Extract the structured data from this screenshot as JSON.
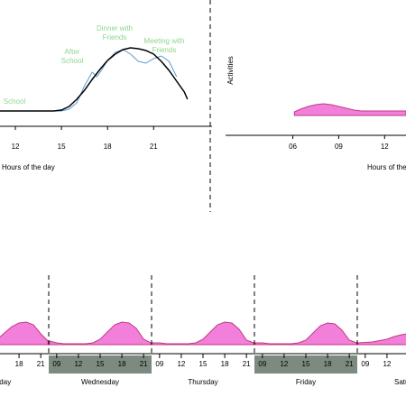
{
  "chart_data": [
    {
      "type": "line",
      "x_label": "Hours of the day",
      "xlim": [
        11,
        24.8
      ],
      "ylim": [
        0,
        1
      ],
      "xticks": [
        12,
        15,
        18,
        21
      ],
      "annotation_color": "#8fd68f",
      "annotations": [
        [
          "School"
        ],
        [
          "After",
          "School"
        ],
        [
          "Dinner with",
          "Friends"
        ],
        [
          "Meeting with",
          "Friends"
        ]
      ],
      "series": [
        {
          "color": "#000000",
          "x": [
            11,
            12,
            13,
            14,
            14.5,
            15,
            15.5,
            16,
            16.5,
            17,
            17.5,
            18,
            18.5,
            19,
            19.5,
            20,
            20.5,
            21,
            21.5,
            22,
            22.5,
            23,
            23.2
          ],
          "values": [
            0.17,
            0.17,
            0.17,
            0.17,
            0.17,
            0.18,
            0.22,
            0.3,
            0.4,
            0.52,
            0.63,
            0.73,
            0.8,
            0.85,
            0.87,
            0.86,
            0.84,
            0.8,
            0.72,
            0.62,
            0.5,
            0.38,
            0.3
          ]
        },
        {
          "color": "#5b9bd5",
          "x": [
            14,
            14.5,
            15,
            15.5,
            16,
            16.5,
            17,
            17.3,
            17.6,
            18,
            18.5,
            19,
            19.5,
            20,
            20.5,
            21,
            21.5,
            22,
            22.5
          ],
          "values": [
            0.17,
            0.17,
            0.17,
            0.19,
            0.26,
            0.45,
            0.6,
            0.55,
            0.62,
            0.73,
            0.82,
            0.85,
            0.8,
            0.72,
            0.7,
            0.75,
            0.78,
            0.72,
            0.55
          ]
        }
      ]
    },
    {
      "type": "area",
      "y_label": "Activities",
      "x_label": "Hours of the day",
      "xlim": [
        1.6,
        13.4
      ],
      "ylim": [
        0,
        1
      ],
      "xticks": [
        {
          "value": 6,
          "label": "06"
        },
        {
          "value": 9,
          "label": "09"
        },
        12
      ],
      "series": [
        {
          "color": "#f27fd9",
          "x": [
            6.1,
            6.5,
            7,
            7.5,
            8,
            8.5,
            9,
            9.5,
            10,
            10.5,
            11,
            12,
            13,
            13.4
          ],
          "values": [
            0.04,
            0.07,
            0.1,
            0.12,
            0.13,
            0.12,
            0.1,
            0.08,
            0.06,
            0.05,
            0.05,
            0.05,
            0.05,
            0.05
          ]
        }
      ]
    },
    {
      "type": "week",
      "xlim": [
        7.9,
        22.1
      ],
      "ylim": [
        0,
        1
      ],
      "color": "#f27fd9",
      "days": [
        {
          "name": "Tuesday",
          "highlight": false,
          "xticks": [
            18,
            21
          ],
          "x": [
            15,
            16,
            17,
            18,
            19,
            20,
            21,
            22
          ],
          "values": [
            0.06,
            0.13,
            0.2,
            0.24,
            0.25,
            0.22,
            0.12,
            0.04
          ]
        },
        {
          "name": "Wednesday",
          "highlight": true,
          "xticks": [
            {
              "value": 9,
              "label": "09"
            },
            12,
            15,
            18,
            21
          ],
          "x": [
            8,
            9,
            10,
            11,
            12,
            13,
            14,
            15,
            16,
            17,
            18,
            19,
            20,
            21,
            22
          ],
          "values": [
            0.04,
            0.02,
            0.01,
            0.01,
            0.01,
            0.01,
            0.02,
            0.06,
            0.14,
            0.22,
            0.25,
            0.24,
            0.18,
            0.06,
            0.02
          ]
        },
        {
          "name": "Thursday",
          "highlight": false,
          "xticks": [
            {
              "value": 9,
              "label": "09"
            },
            12,
            15,
            18,
            21
          ],
          "x": [
            8,
            9,
            10,
            11,
            12,
            13,
            14,
            15,
            16,
            17,
            18,
            19,
            20,
            21,
            22
          ],
          "values": [
            0.02,
            0.02,
            0.01,
            0.01,
            0.01,
            0.01,
            0.02,
            0.06,
            0.14,
            0.22,
            0.25,
            0.24,
            0.17,
            0.05,
            0.02
          ]
        },
        {
          "name": "Friday",
          "highlight": true,
          "xticks": [
            {
              "value": 9,
              "label": "09"
            },
            12,
            15,
            18,
            21
          ],
          "x": [
            8,
            9,
            10,
            11,
            12,
            13,
            14,
            15,
            16,
            17,
            18,
            19,
            20,
            21,
            22
          ],
          "values": [
            0.02,
            0.02,
            0.01,
            0.01,
            0.01,
            0.01,
            0.02,
            0.05,
            0.13,
            0.21,
            0.24,
            0.23,
            0.16,
            0.05,
            0.02
          ]
        },
        {
          "name": "Saturday",
          "highlight": false,
          "xticks": [
            {
              "value": 9,
              "label": "09"
            },
            12
          ],
          "x": [
            8,
            10,
            12,
            13,
            14,
            14.7
          ],
          "values": [
            0.02,
            0.03,
            0.06,
            0.09,
            0.11,
            0.12
          ]
        }
      ]
    }
  ]
}
